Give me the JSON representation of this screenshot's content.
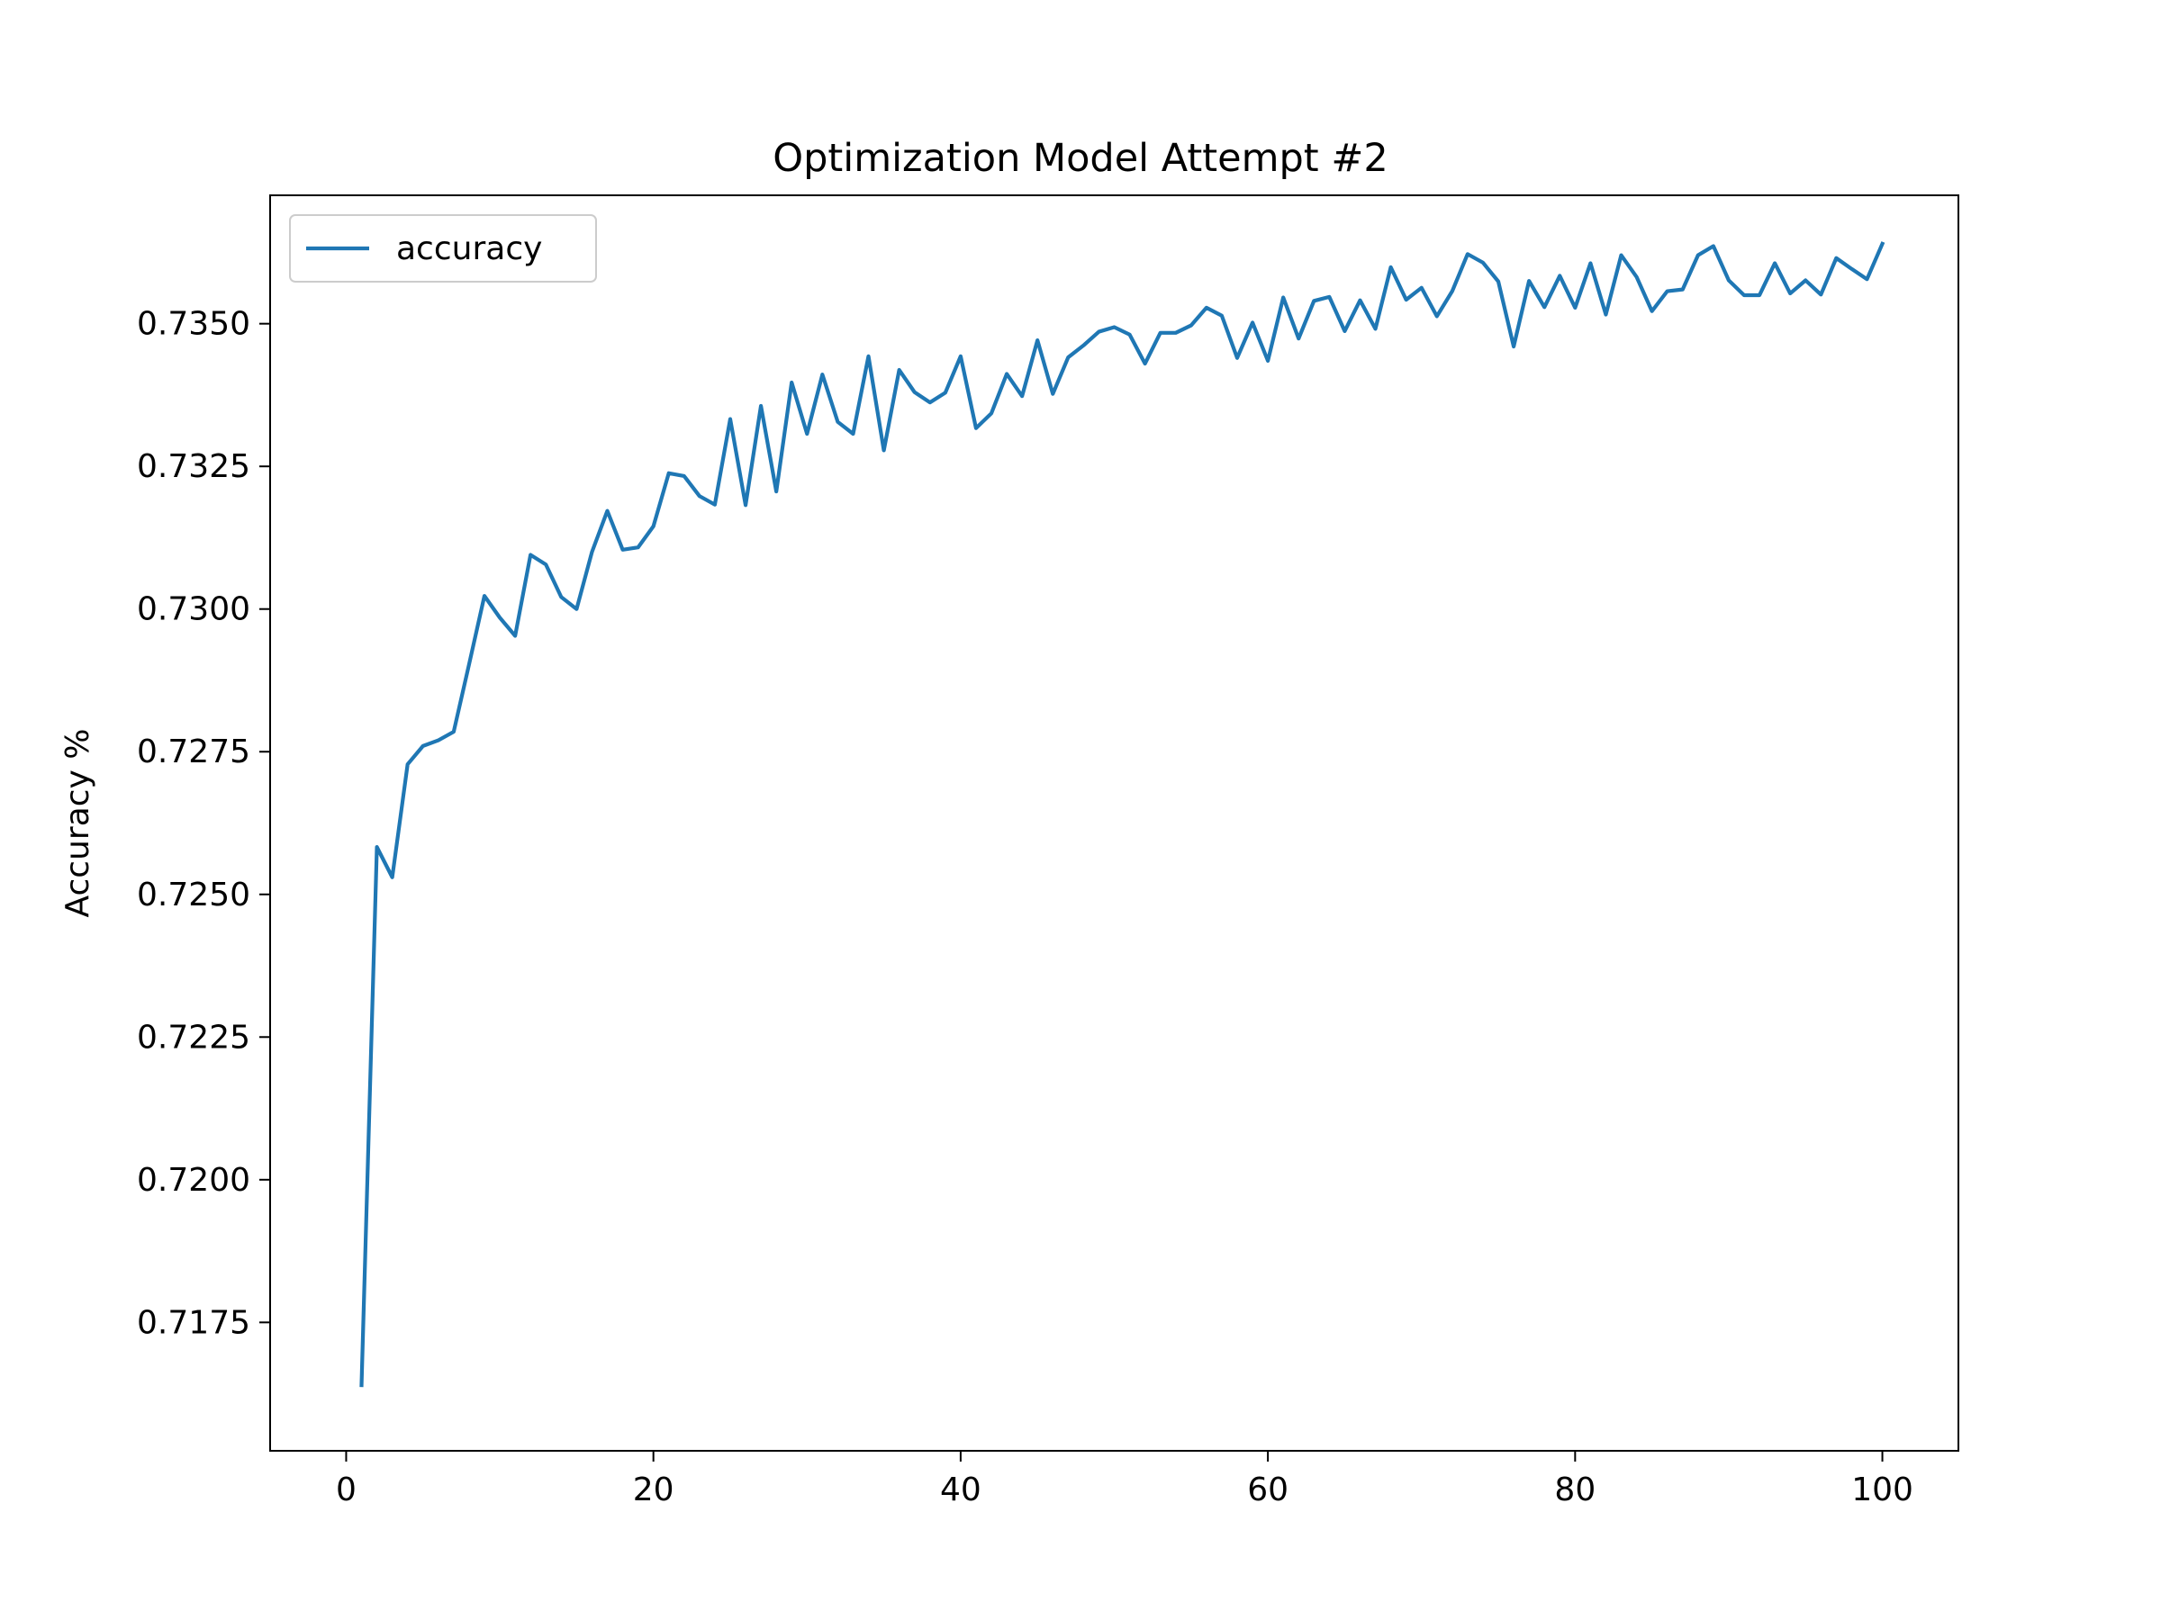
{
  "chart_data": {
    "type": "line",
    "title": "Optimization Model Attempt #2",
    "xlabel": "",
    "ylabel": "Accuracy %",
    "xlim": [
      -4.95,
      104.95
    ],
    "ylim": [
      0.71525,
      0.73725
    ],
    "x_ticks": [
      0,
      20,
      40,
      60,
      80,
      100
    ],
    "x_tick_labels": [
      "0",
      "20",
      "40",
      "60",
      "80",
      "100"
    ],
    "y_ticks": [
      0.7175,
      0.72,
      0.7225,
      0.725,
      0.7275,
      0.73,
      0.7325,
      0.735
    ],
    "y_tick_labels": [
      "0.7175",
      "0.7200",
      "0.7225",
      "0.7250",
      "0.7275",
      "0.7300",
      "0.7325",
      "0.7350"
    ],
    "legend": {
      "position": "upper left",
      "entries": [
        "accuracy"
      ]
    },
    "grid": false,
    "series": [
      {
        "name": "accuracy",
        "color": "#1f77b4",
        "x": [
          1,
          2,
          3,
          4,
          5,
          6,
          7,
          8,
          9,
          10,
          11,
          12,
          13,
          14,
          15,
          16,
          17,
          18,
          19,
          20,
          21,
          22,
          23,
          24,
          25,
          26,
          27,
          28,
          29,
          30,
          31,
          32,
          33,
          34,
          35,
          36,
          37,
          38,
          39,
          40,
          41,
          42,
          43,
          44,
          45,
          46,
          47,
          48,
          49,
          50,
          51,
          52,
          53,
          54,
          55,
          56,
          57,
          58,
          59,
          60,
          61,
          62,
          63,
          64,
          65,
          66,
          67,
          68,
          69,
          70,
          71,
          72,
          73,
          74,
          75,
          76,
          77,
          78,
          79,
          80,
          81,
          82,
          83,
          84,
          85,
          86,
          87,
          88,
          89,
          90,
          91,
          92,
          93,
          94,
          95,
          96,
          97,
          98,
          99,
          100
        ],
        "values": [
          0.7164,
          0.72583,
          0.7253,
          0.72728,
          0.7276,
          0.7277,
          0.72785,
          0.72903,
          0.73023,
          0.72985,
          0.72953,
          0.73095,
          0.73078,
          0.73021,
          0.73,
          0.731,
          0.73172,
          0.73104,
          0.73108,
          0.73145,
          0.73238,
          0.73233,
          0.73198,
          0.73183,
          0.73333,
          0.73182,
          0.73356,
          0.73206,
          0.73397,
          0.73307,
          0.73411,
          0.73328,
          0.73307,
          0.73443,
          0.73278,
          0.73419,
          0.7338,
          0.73362,
          0.73379,
          0.73443,
          0.73317,
          0.73343,
          0.73412,
          0.73373,
          0.73471,
          0.73377,
          0.73441,
          0.73462,
          0.73486,
          0.73494,
          0.73481,
          0.7343,
          0.73484,
          0.73484,
          0.73497,
          0.73528,
          0.73514,
          0.7344,
          0.73502,
          0.73435,
          0.73546,
          0.73474,
          0.7354,
          0.73547,
          0.73487,
          0.73541,
          0.73491,
          0.73599,
          0.73542,
          0.73563,
          0.73513,
          0.73557,
          0.73622,
          0.73607,
          0.73574,
          0.7346,
          0.73575,
          0.73529,
          0.73584,
          0.73528,
          0.73606,
          0.73516,
          0.7362,
          0.73582,
          0.73522,
          0.73557,
          0.7356,
          0.7362,
          0.73636,
          0.73576,
          0.7355,
          0.7355,
          0.73606,
          0.73553,
          0.73576,
          0.73551,
          0.73615,
          0.73596,
          0.73578,
          0.7364
        ]
      }
    ]
  }
}
